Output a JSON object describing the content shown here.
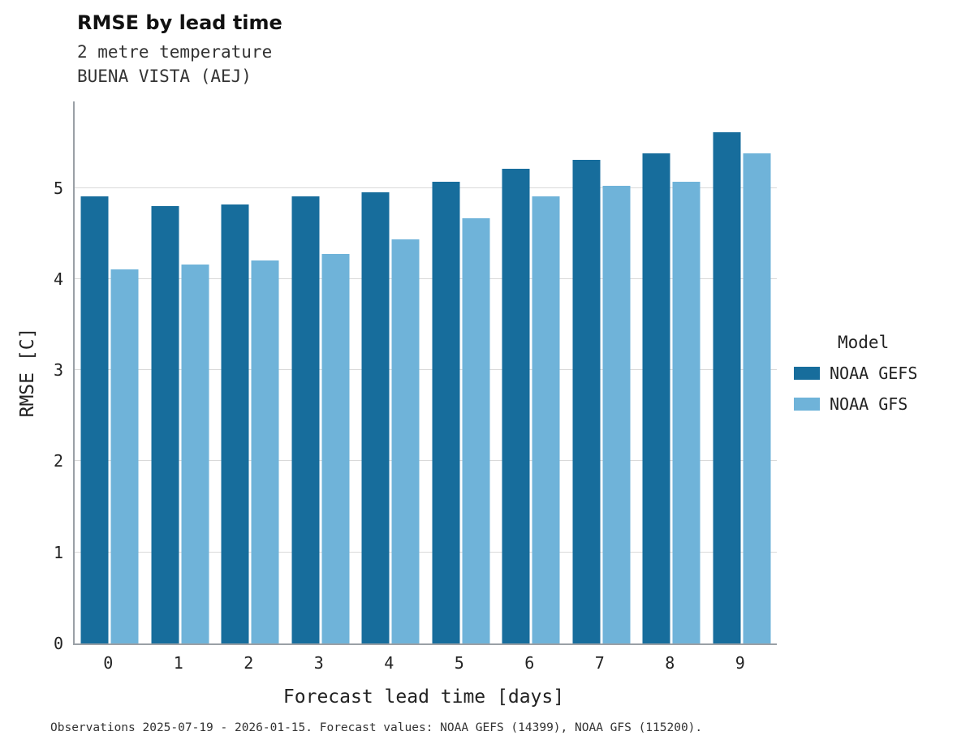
{
  "header": {
    "title": "RMSE by lead time",
    "subtitle1": "2 metre temperature",
    "subtitle2": "BUENA VISTA (AEJ)"
  },
  "chart_data": {
    "type": "bar",
    "title": "RMSE by lead time",
    "subtitle": [
      "2 metre temperature",
      "BUENA VISTA (AEJ)"
    ],
    "categories": [
      "0",
      "1",
      "2",
      "3",
      "4",
      "5",
      "6",
      "7",
      "8",
      "9"
    ],
    "series": [
      {
        "name": "NOAA GEFS",
        "color": "#176d9c",
        "values": [
          4.91,
          4.8,
          4.82,
          4.91,
          4.95,
          5.07,
          5.21,
          5.31,
          5.38,
          5.61
        ]
      },
      {
        "name": "NOAA GFS",
        "color": "#6fb3d9",
        "values": [
          4.11,
          4.16,
          4.2,
          4.28,
          4.44,
          4.67,
          4.91,
          5.02,
          5.07,
          5.38
        ]
      }
    ],
    "xlabel": "Forecast lead time [days]",
    "ylabel": "RMSE [C]",
    "ylim": [
      0,
      5.95
    ],
    "yticks": [
      0,
      1,
      2,
      3,
      4,
      5
    ],
    "grid": true,
    "legend_title": "Model",
    "legend_position": "right"
  },
  "footer": {
    "note": "Observations 2025-07-19 - 2026-01-15. Forecast values: NOAA GEFS (14399), NOAA GFS (115200)."
  }
}
